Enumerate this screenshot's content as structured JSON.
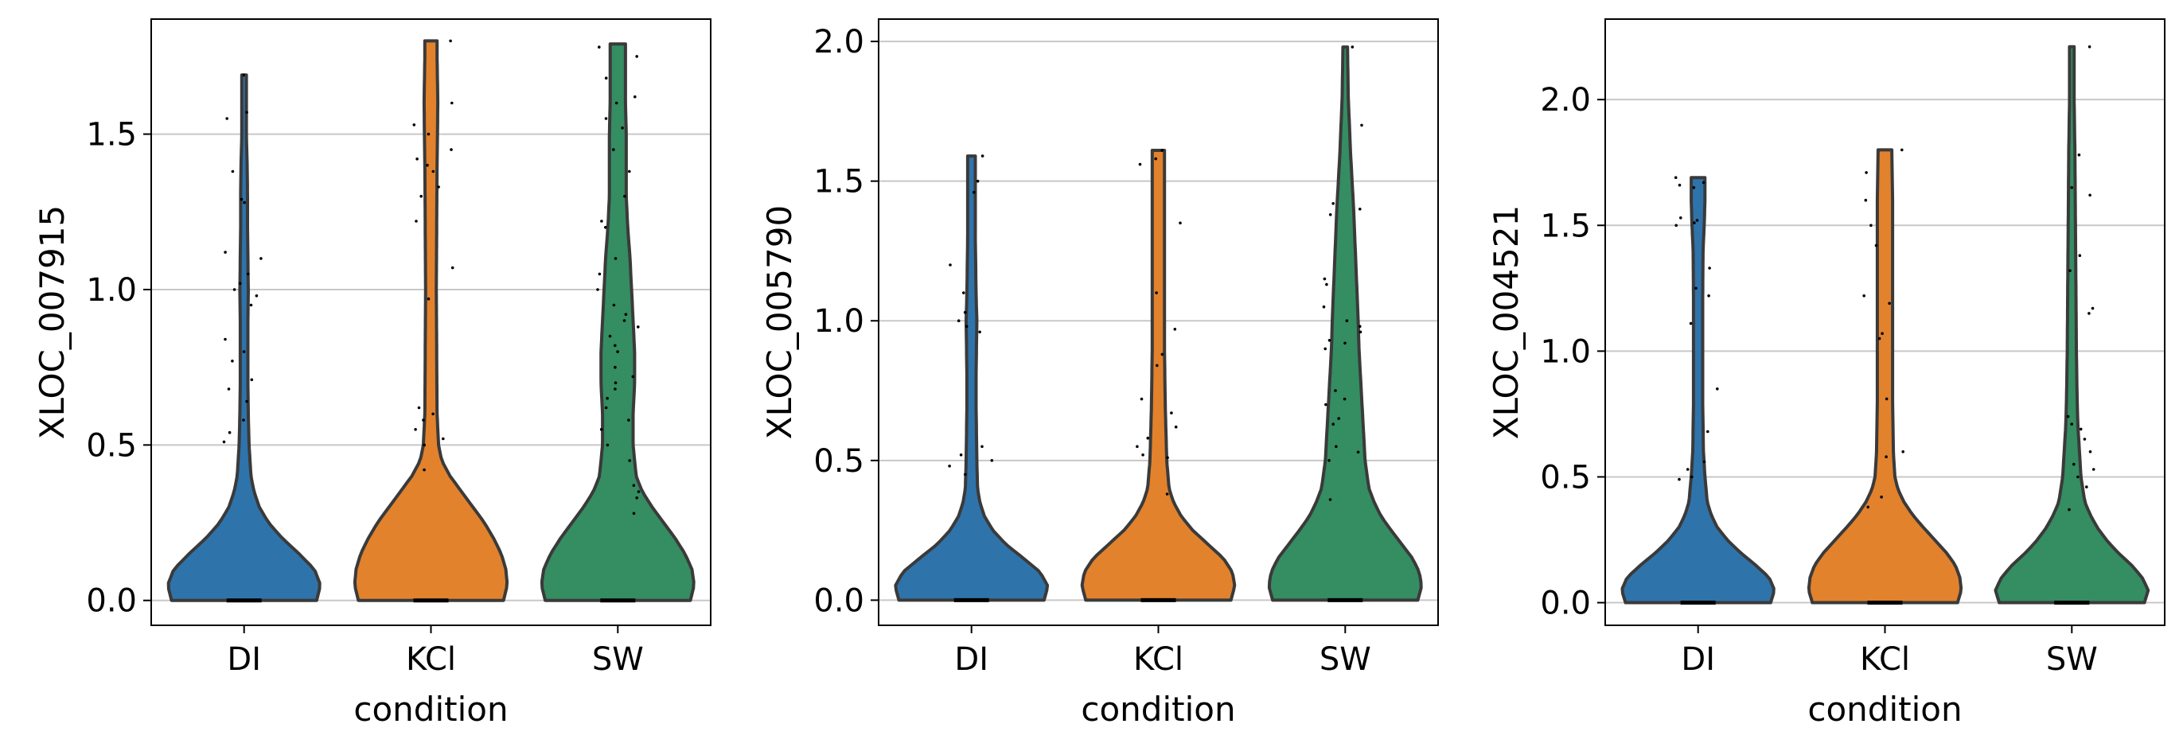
{
  "colors": {
    "DI": "#2f73ab",
    "KCl": "#e2822d",
    "SW": "#358d62",
    "outline": "#3a3a3a",
    "grid": "#c8c8c8",
    "points": "#000000"
  },
  "chart_data": [
    {
      "type": "violin",
      "title": "",
      "xlabel": "condition",
      "ylabel": "XLOC_007915",
      "categories": [
        "DI",
        "KCl",
        "SW"
      ],
      "ylim": [
        -0.08,
        1.87
      ],
      "yticks": [
        0.0,
        0.5,
        1.0,
        1.5
      ],
      "ytick_labels": [
        "0.0",
        "0.5",
        "1.0",
        "1.5"
      ],
      "grid": true,
      "series": [
        {
          "category": "DI",
          "max": 1.69,
          "density": [
            [
              0.0,
              0.95
            ],
            [
              0.05,
              1.0
            ],
            [
              0.1,
              0.92
            ],
            [
              0.15,
              0.72
            ],
            [
              0.2,
              0.5
            ],
            [
              0.25,
              0.32
            ],
            [
              0.3,
              0.2
            ],
            [
              0.35,
              0.13
            ],
            [
              0.4,
              0.09
            ],
            [
              0.5,
              0.065
            ],
            [
              0.6,
              0.055
            ],
            [
              0.7,
              0.05
            ],
            [
              0.8,
              0.05
            ],
            [
              0.9,
              0.05
            ],
            [
              1.0,
              0.055
            ],
            [
              1.1,
              0.05
            ],
            [
              1.2,
              0.045
            ],
            [
              1.3,
              0.045
            ],
            [
              1.4,
              0.04
            ],
            [
              1.5,
              0.03
            ],
            [
              1.6,
              0.03
            ],
            [
              1.69,
              0.03
            ]
          ],
          "points": [
            1.69,
            1.57,
            1.55,
            1.38,
            1.29,
            1.28,
            1.12,
            1.1,
            1.05,
            1.02,
            1.0,
            0.98,
            0.95,
            0.84,
            0.8,
            0.77,
            0.71,
            0.68,
            0.64,
            0.58,
            0.54,
            0.51
          ]
        },
        {
          "category": "KCl",
          "max": 1.8,
          "density": [
            [
              0.0,
              0.95
            ],
            [
              0.05,
              1.0
            ],
            [
              0.1,
              0.98
            ],
            [
              0.15,
              0.92
            ],
            [
              0.2,
              0.82
            ],
            [
              0.25,
              0.7
            ],
            [
              0.3,
              0.55
            ],
            [
              0.35,
              0.4
            ],
            [
              0.4,
              0.25
            ],
            [
              0.45,
              0.14
            ],
            [
              0.5,
              0.1
            ],
            [
              0.6,
              0.08
            ],
            [
              0.8,
              0.075
            ],
            [
              1.0,
              0.07
            ],
            [
              1.2,
              0.075
            ],
            [
              1.4,
              0.08
            ],
            [
              1.6,
              0.09
            ],
            [
              1.75,
              0.08
            ],
            [
              1.8,
              0.08
            ]
          ],
          "points": [
            1.8,
            1.6,
            1.53,
            1.5,
            1.45,
            1.42,
            1.4,
            1.38,
            1.33,
            1.3,
            1.22,
            1.07,
            0.97,
            0.62,
            0.6,
            0.58,
            0.55,
            0.52,
            0.5,
            0.42
          ]
        },
        {
          "category": "SW",
          "max": 1.79,
          "density": [
            [
              0.0,
              0.95
            ],
            [
              0.05,
              1.0
            ],
            [
              0.1,
              0.97
            ],
            [
              0.15,
              0.88
            ],
            [
              0.2,
              0.75
            ],
            [
              0.25,
              0.6
            ],
            [
              0.3,
              0.45
            ],
            [
              0.35,
              0.32
            ],
            [
              0.4,
              0.24
            ],
            [
              0.5,
              0.2
            ],
            [
              0.6,
              0.2
            ],
            [
              0.7,
              0.22
            ],
            [
              0.8,
              0.22
            ],
            [
              0.9,
              0.2
            ],
            [
              1.0,
              0.18
            ],
            [
              1.1,
              0.16
            ],
            [
              1.2,
              0.13
            ],
            [
              1.3,
              0.11
            ],
            [
              1.4,
              0.11
            ],
            [
              1.5,
              0.11
            ],
            [
              1.6,
              0.1
            ],
            [
              1.7,
              0.1
            ],
            [
              1.79,
              0.1
            ]
          ],
          "points": [
            1.78,
            1.75,
            1.68,
            1.62,
            1.6,
            1.55,
            1.52,
            1.45,
            1.38,
            1.3,
            1.22,
            1.2,
            1.1,
            1.05,
            1.0,
            0.95,
            0.92,
            0.9,
            0.88,
            0.85,
            0.82,
            0.8,
            0.75,
            0.72,
            0.7,
            0.68,
            0.65,
            0.62,
            0.58,
            0.55,
            0.5,
            0.45,
            0.37,
            0.35,
            0.33,
            0.28
          ]
        }
      ]
    },
    {
      "type": "violin",
      "title": "",
      "xlabel": "condition",
      "ylabel": "XLOC_005790",
      "categories": [
        "DI",
        "KCl",
        "SW"
      ],
      "ylim": [
        -0.09,
        2.08
      ],
      "yticks": [
        0.0,
        0.5,
        1.0,
        1.5,
        2.0
      ],
      "ytick_labels": [
        "0.0",
        "0.5",
        "1.0",
        "1.5",
        "2.0"
      ],
      "grid": true,
      "series": [
        {
          "category": "DI",
          "max": 1.59,
          "density": [
            [
              0.0,
              0.95
            ],
            [
              0.05,
              1.0
            ],
            [
              0.1,
              0.9
            ],
            [
              0.15,
              0.68
            ],
            [
              0.2,
              0.45
            ],
            [
              0.25,
              0.28
            ],
            [
              0.3,
              0.17
            ],
            [
              0.35,
              0.11
            ],
            [
              0.4,
              0.08
            ],
            [
              0.5,
              0.07
            ],
            [
              0.6,
              0.065
            ],
            [
              0.7,
              0.06
            ],
            [
              0.8,
              0.06
            ],
            [
              0.9,
              0.065
            ],
            [
              1.0,
              0.07
            ],
            [
              1.1,
              0.06
            ],
            [
              1.2,
              0.055
            ],
            [
              1.3,
              0.05
            ],
            [
              1.4,
              0.05
            ],
            [
              1.5,
              0.05
            ],
            [
              1.59,
              0.05
            ]
          ],
          "points": [
            1.59,
            1.5,
            1.46,
            1.2,
            1.1,
            1.03,
            1.0,
            0.98,
            0.96,
            0.55,
            0.52,
            0.5,
            0.48,
            0.45
          ]
        },
        {
          "category": "KCl",
          "max": 1.61,
          "density": [
            [
              0.0,
              0.95
            ],
            [
              0.05,
              1.0
            ],
            [
              0.1,
              0.97
            ],
            [
              0.15,
              0.85
            ],
            [
              0.2,
              0.65
            ],
            [
              0.25,
              0.45
            ],
            [
              0.3,
              0.3
            ],
            [
              0.35,
              0.2
            ],
            [
              0.4,
              0.14
            ],
            [
              0.5,
              0.11
            ],
            [
              0.6,
              0.1
            ],
            [
              0.7,
              0.09
            ],
            [
              0.8,
              0.085
            ],
            [
              0.9,
              0.08
            ],
            [
              1.0,
              0.08
            ],
            [
              1.1,
              0.08
            ],
            [
              1.2,
              0.08
            ],
            [
              1.3,
              0.08
            ],
            [
              1.4,
              0.08
            ],
            [
              1.5,
              0.08
            ],
            [
              1.61,
              0.08
            ]
          ],
          "points": [
            1.61,
            1.58,
            1.56,
            1.35,
            1.1,
            0.97,
            0.88,
            0.84,
            0.72,
            0.67,
            0.62,
            0.58,
            0.55,
            0.52,
            0.51,
            0.38
          ]
        },
        {
          "category": "SW",
          "max": 1.98,
          "density": [
            [
              0.0,
              0.95
            ],
            [
              0.05,
              1.0
            ],
            [
              0.1,
              0.97
            ],
            [
              0.15,
              0.88
            ],
            [
              0.2,
              0.74
            ],
            [
              0.25,
              0.6
            ],
            [
              0.3,
              0.47
            ],
            [
              0.35,
              0.38
            ],
            [
              0.4,
              0.31
            ],
            [
              0.5,
              0.26
            ],
            [
              0.6,
              0.24
            ],
            [
              0.7,
              0.22
            ],
            [
              0.8,
              0.2
            ],
            [
              0.9,
              0.18
            ],
            [
              1.0,
              0.17
            ],
            [
              1.2,
              0.14
            ],
            [
              1.4,
              0.11
            ],
            [
              1.6,
              0.07
            ],
            [
              1.8,
              0.04
            ],
            [
              1.98,
              0.03
            ]
          ],
          "points": [
            1.98,
            1.7,
            1.42,
            1.4,
            1.38,
            1.15,
            1.13,
            1.05,
            1.0,
            0.98,
            0.96,
            0.93,
            0.92,
            0.9,
            0.75,
            0.72,
            0.7,
            0.65,
            0.63,
            0.55,
            0.53,
            0.5,
            0.36
          ]
        }
      ]
    },
    {
      "type": "violin",
      "title": "",
      "xlabel": "condition",
      "ylabel": "XLOC_004521",
      "categories": [
        "DI",
        "KCl",
        "SW"
      ],
      "ylim": [
        -0.09,
        2.32
      ],
      "yticks": [
        0.0,
        0.5,
        1.0,
        1.5,
        2.0
      ],
      "ytick_labels": [
        "0.0",
        "0.5",
        "1.0",
        "1.5",
        "2.0"
      ],
      "grid": true,
      "series": [
        {
          "category": "DI",
          "max": 1.69,
          "density": [
            [
              0.0,
              0.95
            ],
            [
              0.05,
              1.0
            ],
            [
              0.1,
              0.93
            ],
            [
              0.15,
              0.75
            ],
            [
              0.2,
              0.55
            ],
            [
              0.25,
              0.38
            ],
            [
              0.3,
              0.25
            ],
            [
              0.35,
              0.17
            ],
            [
              0.4,
              0.12
            ],
            [
              0.5,
              0.09
            ],
            [
              0.6,
              0.07
            ],
            [
              0.8,
              0.06
            ],
            [
              1.0,
              0.06
            ],
            [
              1.2,
              0.06
            ],
            [
              1.4,
              0.065
            ],
            [
              1.5,
              0.08
            ],
            [
              1.6,
              0.09
            ],
            [
              1.69,
              0.09
            ]
          ],
          "points": [
            1.69,
            1.67,
            1.66,
            1.65,
            1.53,
            1.52,
            1.51,
            1.5,
            1.33,
            1.25,
            1.22,
            1.11,
            0.85,
            0.68,
            0.56,
            0.53,
            0.5,
            0.49
          ]
        },
        {
          "category": "KCl",
          "max": 1.8,
          "density": [
            [
              0.0,
              0.95
            ],
            [
              0.05,
              1.0
            ],
            [
              0.1,
              0.98
            ],
            [
              0.15,
              0.92
            ],
            [
              0.2,
              0.8
            ],
            [
              0.25,
              0.65
            ],
            [
              0.3,
              0.5
            ],
            [
              0.35,
              0.36
            ],
            [
              0.4,
              0.25
            ],
            [
              0.45,
              0.17
            ],
            [
              0.5,
              0.13
            ],
            [
              0.6,
              0.11
            ],
            [
              0.8,
              0.1
            ],
            [
              1.0,
              0.1
            ],
            [
              1.2,
              0.1
            ],
            [
              1.4,
              0.1
            ],
            [
              1.6,
              0.1
            ],
            [
              1.8,
              0.09
            ]
          ],
          "points": [
            1.8,
            1.71,
            1.6,
            1.5,
            1.42,
            1.22,
            1.19,
            1.07,
            1.05,
            0.81,
            0.6,
            0.58,
            0.42,
            0.38
          ]
        },
        {
          "category": "SW",
          "max": 2.21,
          "density": [
            [
              0.0,
              0.95
            ],
            [
              0.05,
              1.0
            ],
            [
              0.1,
              0.92
            ],
            [
              0.15,
              0.78
            ],
            [
              0.2,
              0.6
            ],
            [
              0.25,
              0.45
            ],
            [
              0.3,
              0.33
            ],
            [
              0.35,
              0.24
            ],
            [
              0.4,
              0.17
            ],
            [
              0.5,
              0.12
            ],
            [
              0.6,
              0.1
            ],
            [
              0.7,
              0.08
            ],
            [
              0.8,
              0.07
            ],
            [
              1.0,
              0.06
            ],
            [
              1.2,
              0.055
            ],
            [
              1.4,
              0.05
            ],
            [
              1.6,
              0.045
            ],
            [
              1.8,
              0.04
            ],
            [
              2.0,
              0.03
            ],
            [
              2.21,
              0.03
            ]
          ],
          "points": [
            2.21,
            1.78,
            1.65,
            1.62,
            1.38,
            1.32,
            1.17,
            1.15,
            0.74,
            0.71,
            0.69,
            0.65,
            0.6,
            0.55,
            0.53,
            0.5,
            0.46,
            0.37
          ]
        }
      ]
    }
  ]
}
